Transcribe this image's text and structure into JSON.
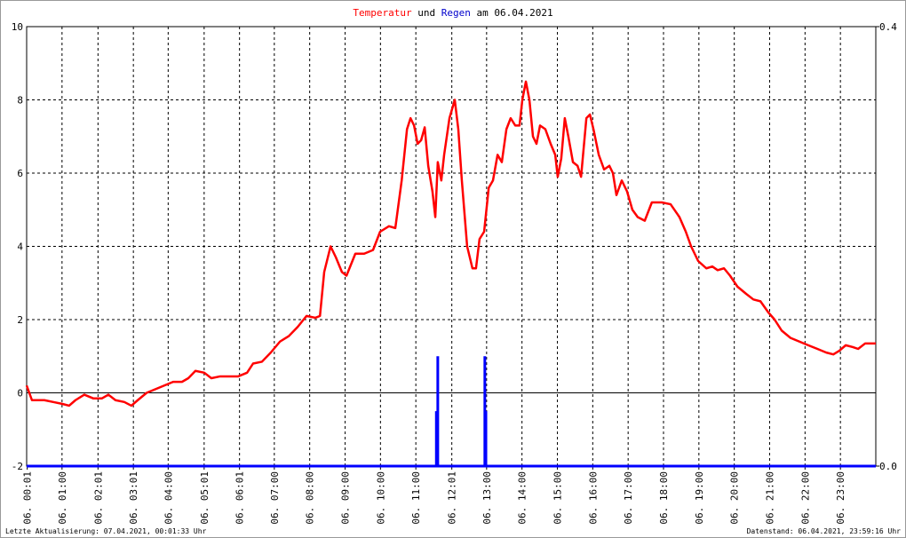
{
  "chart_data": {
    "type": "line",
    "title_mid": "und",
    "title_end": "am 06.04.2021",
    "footer_left": "Letzte Aktualisierung: 07.04.2021, 00:01:33 Uhr",
    "footer_right": "Datenstand: 06.04.2021, 23:59:16 Uhr",
    "xlim": [
      0,
      24
    ],
    "xticks": [
      {
        "value": 0.0167,
        "label": "06. 00:01"
      },
      {
        "value": 1,
        "label": "06. 01:00"
      },
      {
        "value": 2.0167,
        "label": "06. 02:01"
      },
      {
        "value": 3.0167,
        "label": "06. 03:01"
      },
      {
        "value": 4,
        "label": "06. 04:00"
      },
      {
        "value": 5.0167,
        "label": "06. 05:01"
      },
      {
        "value": 6.0167,
        "label": "06. 06:01"
      },
      {
        "value": 7,
        "label": "06. 07:00"
      },
      {
        "value": 8,
        "label": "06. 08:00"
      },
      {
        "value": 9,
        "label": "06. 09:00"
      },
      {
        "value": 10,
        "label": "06. 10:00"
      },
      {
        "value": 11,
        "label": "06. 11:00"
      },
      {
        "value": 12.0167,
        "label": "06. 12:01"
      },
      {
        "value": 13,
        "label": "06. 13:00"
      },
      {
        "value": 14,
        "label": "06. 14:00"
      },
      {
        "value": 15,
        "label": "06. 15:00"
      },
      {
        "value": 16,
        "label": "06. 16:00"
      },
      {
        "value": 17,
        "label": "06. 17:00"
      },
      {
        "value": 18,
        "label": "06. 18:00"
      },
      {
        "value": 19,
        "label": "06. 19:00"
      },
      {
        "value": 20,
        "label": "06. 20:00"
      },
      {
        "value": 21,
        "label": "06. 21:00"
      },
      {
        "value": 22,
        "label": "06. 22:00"
      },
      {
        "value": 23,
        "label": "06. 23:00"
      }
    ],
    "ylim": [
      -2,
      10
    ],
    "yticks": [
      -2,
      0,
      2,
      4,
      6,
      8,
      10
    ],
    "y2lim": [
      0,
      0.4
    ],
    "y2ticks": [
      {
        "value": 0,
        "label": "0.0"
      },
      {
        "value": 0.4,
        "label": "0.4"
      }
    ],
    "grid": true,
    "series": [
      {
        "name": "Temperatur",
        "color": "#ff0000",
        "x": [
          0,
          0.15,
          0.5,
          0.75,
          1.0,
          1.2,
          1.38,
          1.63,
          1.88,
          2.13,
          2.31,
          2.51,
          2.76,
          2.96,
          3.14,
          3.39,
          3.64,
          3.89,
          4.14,
          4.39,
          4.57,
          4.77,
          5.02,
          5.22,
          5.47,
          5.72,
          5.98,
          6.23,
          6.4,
          6.65,
          6.9,
          7.16,
          7.41,
          7.66,
          7.91,
          8.16,
          8.29,
          8.41,
          8.59,
          8.74,
          8.91,
          9.04,
          9.29,
          9.54,
          9.79,
          9.99,
          10.24,
          10.42,
          10.6,
          10.75,
          10.85,
          10.95,
          11.05,
          11.15,
          11.25,
          11.35,
          11.47,
          11.55,
          11.62,
          11.72,
          11.8,
          11.95,
          12.1,
          12.2,
          12.3,
          12.45,
          12.6,
          12.7,
          12.8,
          12.93,
          13.06,
          13.18,
          13.31,
          13.43,
          13.56,
          13.68,
          13.81,
          13.93,
          14.01,
          14.11,
          14.21,
          14.31,
          14.41,
          14.51,
          14.66,
          14.81,
          14.94,
          15.01,
          15.11,
          15.21,
          15.31,
          15.44,
          15.57,
          15.67,
          15.82,
          15.92,
          16.02,
          16.17,
          16.32,
          16.47,
          16.57,
          16.67,
          16.82,
          16.97,
          17.12,
          17.27,
          17.47,
          17.67,
          17.95,
          18.2,
          18.45,
          18.63,
          18.78,
          18.98,
          19.21,
          19.38,
          19.53,
          19.71,
          19.88,
          20.09,
          20.34,
          20.54,
          20.74,
          20.96,
          21.14,
          21.34,
          21.59,
          21.84,
          22.09,
          22.35,
          22.6,
          22.8,
          22.97,
          23.15,
          23.35,
          23.5,
          23.7,
          24.0
        ],
        "values": [
          0.2,
          -0.2,
          -0.2,
          -0.25,
          -0.3,
          -0.35,
          -0.2,
          -0.05,
          -0.15,
          -0.15,
          -0.05,
          -0.2,
          -0.25,
          -0.35,
          -0.2,
          0,
          0.1,
          0.2,
          0.3,
          0.3,
          0.4,
          0.6,
          0.55,
          0.4,
          0.45,
          0.45,
          0.45,
          0.55,
          0.8,
          0.85,
          1.1,
          1.4,
          1.55,
          1.8,
          2.1,
          2.05,
          2.1,
          3.3,
          4.0,
          3.7,
          3.3,
          3.2,
          3.8,
          3.8,
          3.9,
          4.4,
          4.55,
          4.5,
          5.8,
          7.2,
          7.5,
          7.3,
          6.8,
          6.9,
          7.25,
          6.2,
          5.5,
          4.8,
          6.3,
          5.8,
          6.5,
          7.5,
          8.0,
          7.2,
          5.8,
          4.0,
          3.4,
          3.4,
          4.2,
          4.4,
          5.6,
          5.8,
          6.5,
          6.3,
          7.2,
          7.5,
          7.3,
          7.3,
          8.0,
          8.5,
          8.0,
          7.0,
          6.8,
          7.3,
          7.2,
          6.8,
          6.5,
          5.9,
          6.4,
          7.5,
          7.0,
          6.3,
          6.2,
          5.9,
          7.5,
          7.6,
          7.2,
          6.5,
          6.1,
          6.2,
          6.0,
          5.4,
          5.8,
          5.5,
          5.0,
          4.8,
          4.7,
          5.2,
          5.2,
          5.15,
          4.8,
          4.4,
          4.0,
          3.6,
          3.4,
          3.45,
          3.35,
          3.4,
          3.2,
          2.9,
          2.7,
          2.55,
          2.5,
          2.2,
          2.0,
          1.7,
          1.5,
          1.4,
          1.3,
          1.2,
          1.1,
          1.05,
          1.15,
          1.3,
          1.25,
          1.2,
          1.35,
          1.35
        ]
      },
      {
        "name": "Regen",
        "color": "#0000ff",
        "axis": "y2",
        "x": [
          11.58,
          11.62,
          12.95,
          12.98
        ],
        "values": [
          0.05,
          0.1,
          0.1,
          0.05
        ]
      }
    ]
  }
}
